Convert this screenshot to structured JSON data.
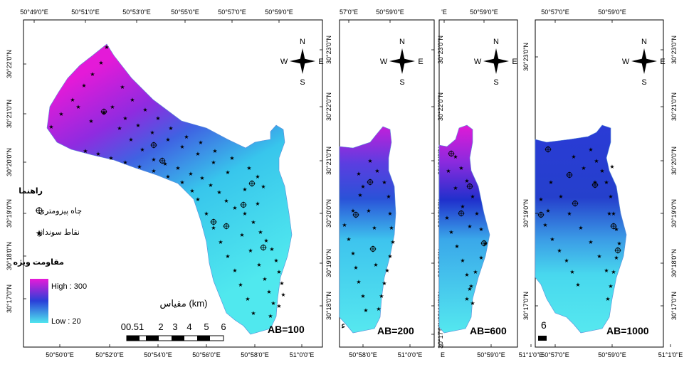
{
  "panels": [
    {
      "ab_label": "AB=100",
      "top_ticks": [
        "50°49'0\"E",
        "50°51'0\"E",
        "50°53'0\"E",
        "50°55'0\"E",
        "50°57'0\"E",
        "50°59'0\"E"
      ],
      "bottom_ticks": [
        "50°50'0\"E",
        "50°52'0\"E",
        "50°54'0\"E",
        "50°56'0\"E",
        "50°58'0\"E",
        "51°0'0\"E"
      ],
      "left_ticks": [
        "30°22'0\"N",
        "30°21'0\"N",
        "30°20'0\"N",
        "30°19'0\"N",
        "30°18'0\"N",
        "30°17'0\"N",
        "30°16'0\"N"
      ],
      "right_ticks": [
        "30°23'0\"N",
        "30°22'0\"N",
        "30°21'0\"N",
        "30°20'0\"N",
        "30°19'0\"N",
        "30°18'0\"N",
        "30°17'0\"N"
      ]
    },
    {
      "ab_label": "AB=200",
      "top_ticks": [
        "57'0\"E",
        "50°59'0\"E"
      ],
      "bottom_ticks": [
        "50°58'0\"E",
        "51°0'0\"E"
      ],
      "right_ticks": [
        "30°23'0\"N",
        "30°22'0\"N",
        "30°21'0\"N",
        "30°20'0\"N",
        "30°19'0\"N",
        "30°18'0\"N",
        "30°17'0\"N",
        "30°16'0\"N"
      ]
    },
    {
      "ab_label": "AB=600",
      "top_ticks": [
        "'E",
        "50°59'0\"E"
      ],
      "bottom_ticks": [
        "E",
        "50°59'0\"E",
        "51°1'0\"E"
      ]
    },
    {
      "ab_label": "AB=1000",
      "top_ticks": [
        "50°57'0\"E",
        "50°59'0\"E"
      ],
      "bottom_ticks": [
        "50°57'0\"E",
        "50°59'0\"E",
        "51°1'0\"E"
      ],
      "left_ticks": [
        "30°23'0\"N",
        "30°19'0\"N",
        "30°17'0\"N"
      ],
      "right_ticks": [
        "30°23'0\"N",
        "30°21'0\"N",
        "30°20'0\"N",
        "30°19'0\"N",
        "30°18'0\"N",
        "30°17'0\"N"
      ]
    }
  ],
  "compass": {
    "n": "N",
    "s": "S",
    "e": "E",
    "w": "W"
  },
  "legend": {
    "title": "راهنما",
    "well_label": "چاه پیزومتری",
    "sounding_label": "نقاط سونداژ",
    "resistivity_title": "مقاومت ویژه",
    "high": "High : 300",
    "low": "Low : 20"
  },
  "scale": {
    "title": "مقیاس (km)",
    "ticks": [
      "00.51",
      "2",
      "3",
      "4",
      "5",
      "6"
    ],
    "partial": "6"
  },
  "colors": {
    "high": "#e81ad8",
    "mid": "#2a3fd8",
    "low": "#4fe4ee"
  },
  "stray_mark": "ء"
}
